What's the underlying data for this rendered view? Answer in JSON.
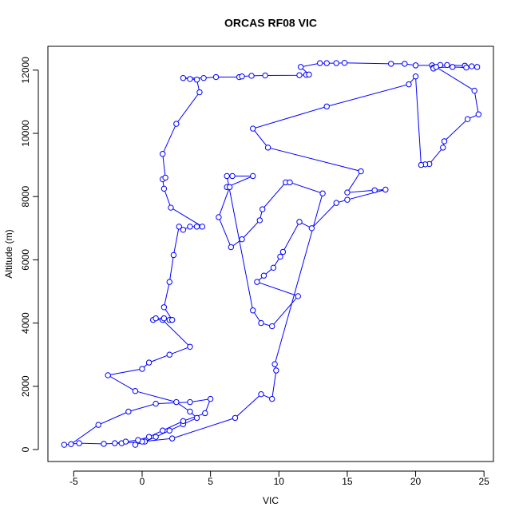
{
  "chart_data": {
    "type": "line",
    "marker": "circle",
    "title": "ORCAS RF08 VIC",
    "xlabel": "VIC",
    "ylabel": "Altitude (m)",
    "color": "#0000ff",
    "x": [
      -0.5,
      0.2,
      1.0,
      2.0,
      3.0,
      4.0,
      3.5,
      2.5,
      -0.5,
      -2.5,
      0.0,
      0.5,
      2.0,
      3.5,
      1.5,
      0.8,
      1.0,
      1.6,
      2.0,
      2.2,
      1.6,
      2.0,
      2.3,
      2.7,
      3.0,
      3.5,
      4.0,
      4.4,
      2.1,
      1.6,
      1.5,
      1.7,
      1.5,
      2.5,
      4.2,
      4.0,
      3.5,
      3.0,
      4.5,
      5.4,
      7.1,
      7.3,
      8.0,
      9.0,
      11.5,
      12.0,
      12.2,
      11.6,
      13.0,
      13.5,
      14.2,
      14.8,
      18.2,
      19.2,
      20.0,
      21.2,
      21.8,
      22.3,
      23.6,
      24.1,
      24.5,
      23.7,
      22.7,
      21.3,
      21.3,
      21.5,
      24.3,
      24.6,
      23.8,
      22.1,
      22.0,
      21.0,
      20.7,
      20.4,
      20.0,
      19.5,
      13.5,
      8.1,
      9.2,
      16.0,
      15.0,
      17.0,
      17.8,
      15.0,
      14.2,
      12.4,
      11.5,
      10.3,
      10.1,
      9.6,
      8.9,
      8.4,
      11.4,
      9.5,
      8.7,
      8.1,
      6.2,
      6.6,
      8.1,
      6.2,
      6.4,
      5.6,
      6.5,
      7.3,
      8.6,
      8.8,
      10.5,
      10.8,
      13.2,
      9.7,
      9.8,
      9.5,
      8.7,
      6.8,
      2.2,
      0.0,
      -1.5,
      -2.8,
      -4.6,
      -5.7,
      -5.2,
      -3.2,
      -1.0,
      1.0,
      3.5,
      5.0,
      4.6,
      3.0,
      1.5,
      0.5,
      -0.3,
      -1.2,
      -2.0
    ],
    "values": [
      150,
      250,
      400,
      600,
      800,
      1000,
      1200,
      1500,
      1850,
      2350,
      2550,
      2750,
      3000,
      3250,
      4100,
      4100,
      4150,
      4150,
      4100,
      4100,
      4500,
      5300,
      6150,
      7050,
      6950,
      7050,
      7050,
      7050,
      7650,
      8250,
      8550,
      8600,
      9350,
      10300,
      11300,
      11700,
      11720,
      11750,
      11750,
      11780,
      11780,
      11800,
      11820,
      11830,
      11840,
      11850,
      11860,
      12100,
      12220,
      12220,
      12220,
      12230,
      12200,
      12200,
      12150,
      12150,
      12160,
      12160,
      12140,
      12120,
      12100,
      12080,
      12100,
      12080,
      12050,
      12100,
      11350,
      10600,
      10450,
      9750,
      9550,
      9030,
      9020,
      9000,
      11800,
      11550,
      10850,
      10150,
      9550,
      8800,
      8130,
      8200,
      8220,
      7900,
      7800,
      7000,
      7200,
      6250,
      6100,
      5750,
      5500,
      5300,
      4850,
      3900,
      4000,
      4400,
      8650,
      8650,
      8650,
      8300,
      8300,
      7350,
      6400,
      6650,
      7250,
      7600,
      8450,
      8450,
      8100,
      2700,
      2500,
      1600,
      1750,
      1000,
      350,
      250,
      200,
      180,
      200,
      150,
      170,
      780,
      1200,
      1450,
      1500,
      1600,
      1150,
      900,
      600,
      400,
      300,
      250,
      200
    ],
    "xlim": [
      -6.89,
      25.69
    ],
    "ylim": [
      -379,
      12753
    ],
    "xticks": [
      -5,
      0,
      5,
      10,
      15,
      20,
      25
    ],
    "yticks": [
      0,
      2000,
      4000,
      6000,
      8000,
      10000,
      12000
    ]
  }
}
